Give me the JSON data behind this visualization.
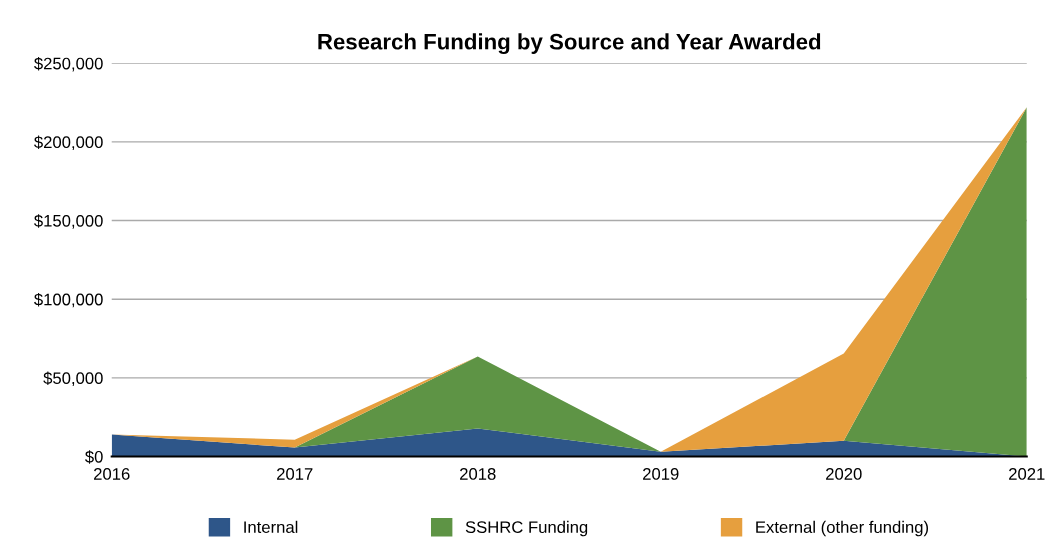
{
  "chart_data": {
    "type": "area",
    "stacked": true,
    "title": "Research Funding by Source and Year Awarded",
    "categories": [
      "2016",
      "2017",
      "2018",
      "2019",
      "2020",
      "2021"
    ],
    "series": [
      {
        "name": "Internal",
        "color": "#2e5689",
        "values": [
          14000,
          5700,
          17800,
          3000,
          10000,
          0
        ]
      },
      {
        "name": "SSHRC Funding",
        "color": "#5e9445",
        "values": [
          0,
          0,
          45800,
          0,
          0,
          222000
        ]
      },
      {
        "name": "External (other funding)",
        "color": "#e69f3e",
        "values": [
          0,
          5000,
          0,
          0,
          55500,
          0
        ]
      }
    ],
    "ylim": [
      0,
      250000
    ],
    "yticks": [
      {
        "value": 0,
        "label": "$0"
      },
      {
        "value": 50000,
        "label": "$50,000"
      },
      {
        "value": 100000,
        "label": "$100,000"
      },
      {
        "value": 150000,
        "label": "$150,000"
      },
      {
        "value": 200000,
        "label": "$200,000"
      },
      {
        "value": 250000,
        "label": "$250,000"
      }
    ],
    "grid": "y",
    "legend": "bottom"
  }
}
